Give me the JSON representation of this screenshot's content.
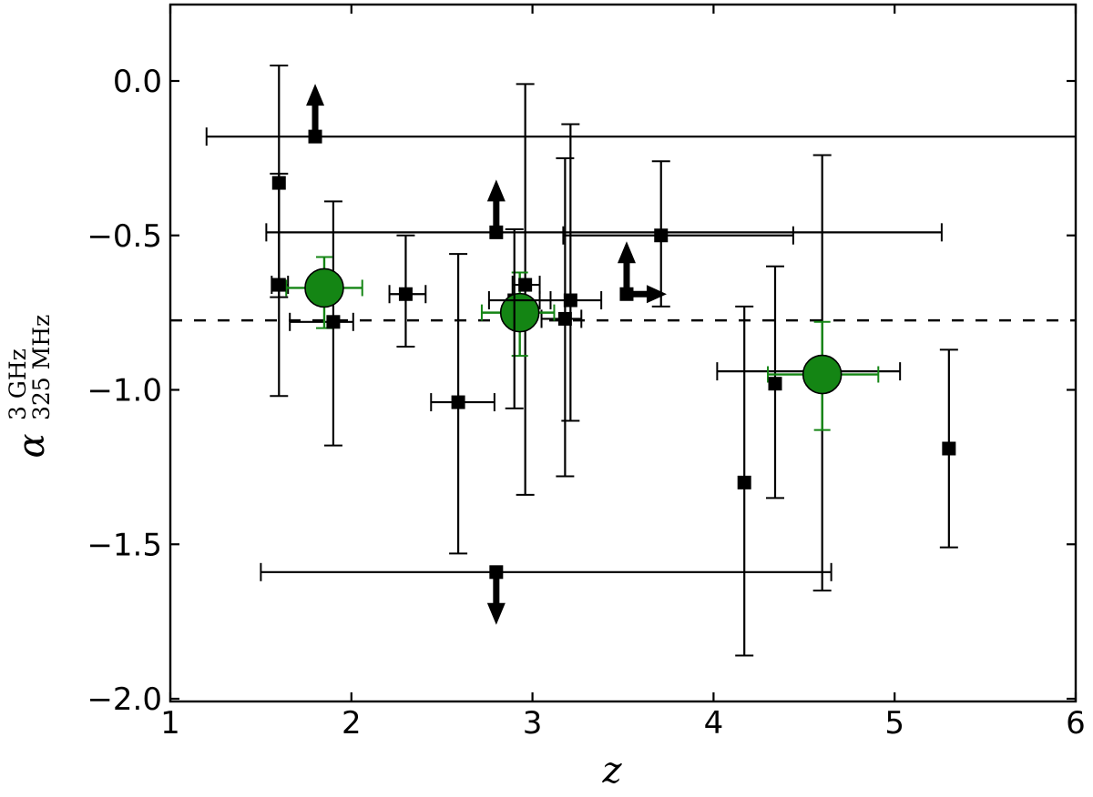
{
  "figure": {
    "background": "#ffffff"
  },
  "chart_data": {
    "type": "scatter",
    "title": "",
    "xlabel": "z",
    "ylabel": {
      "base": "α",
      "sup": "3 GHz",
      "sub": "325 MHz"
    },
    "xlim": [
      1,
      6
    ],
    "ylim": [
      -2.01,
      0.25
    ],
    "grid": false,
    "legend": "none",
    "x_ticks": {
      "values": [
        1,
        2,
        3,
        4,
        5,
        6
      ],
      "labels": [
        "1",
        "2",
        "3",
        "4",
        "5",
        "6"
      ]
    },
    "y_ticks": {
      "values": [
        0,
        -0.5,
        -1,
        -1.5,
        -2
      ],
      "labels": [
        "0.0",
        "−0.5",
        "−1.0",
        "−1.5",
        "−2.0"
      ]
    },
    "dashed_median_alpha": -0.775,
    "colors": {
      "points": "#000000",
      "medians": "#148514",
      "background": "#ffffff"
    },
    "squares": [
      {
        "z": 1.6,
        "a": -0.33,
        "a_lo": -0.7,
        "a_hi": 0.05
      },
      {
        "z": 1.6,
        "a": -0.66,
        "z_lo": 1.56,
        "z_hi": 1.65,
        "a_lo": -1.02,
        "a_hi": -0.3
      },
      {
        "z": 1.8,
        "a": -0.18,
        "z_lo": 1.2,
        "z_hi": 6.0,
        "limit": "up"
      },
      {
        "z": 1.9,
        "a": -0.78,
        "z_lo": 1.66,
        "z_hi": 2.01,
        "a_lo": -1.18,
        "a_hi": -0.39
      },
      {
        "z": 2.3,
        "a": -0.69,
        "z_lo": 2.21,
        "z_hi": 2.41,
        "a_lo": -0.86,
        "a_hi": -0.5
      },
      {
        "z": 2.59,
        "a": -1.04,
        "z_lo": 2.44,
        "z_hi": 2.79,
        "a_lo": -1.53,
        "a_hi": -0.56
      },
      {
        "z": 2.8,
        "a": -0.49,
        "z_lo": 1.53,
        "z_hi": 5.26,
        "limit": "up"
      },
      {
        "z": 2.96,
        "a": -0.66,
        "z_lo": 2.89,
        "z_hi": 3.04,
        "a_lo": -1.34,
        "a_hi": -0.01
      },
      {
        "z": 2.9,
        "a": -0.71,
        "z_lo": 2.76,
        "z_hi": 3.1,
        "a_lo": -1.06,
        "a_hi": -0.48,
        "hidden": true,
        "front": true
      },
      {
        "z": 3.21,
        "a": -0.71,
        "z_lo": 3.04,
        "z_hi": 3.38,
        "a_lo": -1.1,
        "a_hi": -0.14
      },
      {
        "z": 3.18,
        "a": -0.77,
        "z_lo": 3.05,
        "z_hi": 3.27,
        "a_lo": -1.28,
        "a_hi": -0.25
      },
      {
        "z": 3.71,
        "a": -0.5,
        "z_lo": 3.17,
        "z_hi": 4.44,
        "a_lo": -0.73,
        "a_hi": -0.26
      },
      {
        "z": 3.52,
        "a": -0.69,
        "limit": "up-right"
      },
      {
        "z": 2.8,
        "a": -1.59,
        "z_lo": 1.5,
        "z_hi": 4.65,
        "limit": "down"
      },
      {
        "z": 4.17,
        "a": -1.3,
        "a_lo": -1.86,
        "a_hi": -0.73
      },
      {
        "z": 4.34,
        "a": -0.98,
        "a_lo": -1.35,
        "a_hi": -0.6
      },
      {
        "z": 4.6,
        "a": -0.94,
        "z_lo": 4.02,
        "z_hi": 5.03,
        "a_lo": -1.65,
        "a_hi": -0.24,
        "hidden": true
      },
      {
        "z": 5.3,
        "a": -1.19,
        "a_lo": -1.51,
        "a_hi": -0.87
      }
    ],
    "medians": [
      {
        "z": 1.85,
        "a": -0.67,
        "z_lo": 1.64,
        "z_hi": 2.06,
        "a_lo": -0.8,
        "a_hi": -0.57
      },
      {
        "z": 2.93,
        "a": -0.75,
        "z_lo": 2.72,
        "z_hi": 3.12,
        "a_lo": -0.89,
        "a_hi": -0.62
      },
      {
        "z": 4.6,
        "a": -0.95,
        "z_lo": 4.3,
        "z_hi": 4.91,
        "a_lo": -1.13,
        "a_hi": -0.78
      }
    ]
  }
}
